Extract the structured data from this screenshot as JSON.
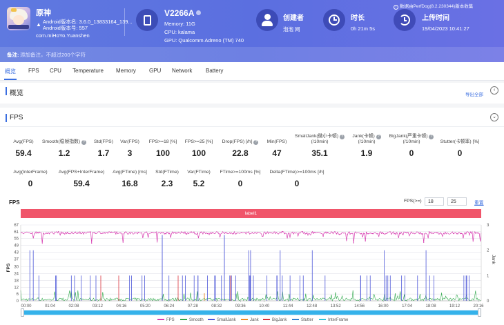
{
  "header": {
    "app_name": "原神",
    "android_version_name": "Android版本名: 3.6.0_13833164_139...",
    "android_version_code": "Android版本号: 557",
    "package": "com.miHoYo.Yuanshen",
    "device_name": "V2266A",
    "memory": "Memory: 11G",
    "cpu": "CPU: kalama",
    "gpu": "GPU: Qualcomm Adreno (TM) 740",
    "creator_title": "创建者",
    "creator_value": "泡泡 网",
    "duration_title": "时长",
    "duration_value": "0h 21m 5s",
    "upload_title": "上传时间",
    "upload_value": "19/04/2023 10:41:27",
    "source_note": "数据由PerfDog(8.2.230344)版本收集",
    "remark_label": "备注:",
    "remark_placeholder": "添加备注，不超过200个字符"
  },
  "tabs": [
    "概览",
    "FPS",
    "CPU",
    "Temperature",
    "Memory",
    "GPU",
    "Network",
    "Battery"
  ],
  "overview": {
    "title": "概览",
    "export_label": "导出全部"
  },
  "fps_panel": {
    "title": "FPS",
    "metrics_row1": [
      {
        "label": "Avg(FPS)",
        "value": "59.4",
        "help": false
      },
      {
        "label": "Smooth(稳帧指数)",
        "value": "1.2",
        "help": true
      },
      {
        "label": "Std(FPS)",
        "value": "1.7",
        "help": false
      },
      {
        "label": "Var(FPS)",
        "value": "3",
        "help": false
      },
      {
        "label": "FPS>=18 [%]",
        "value": "100",
        "help": false
      },
      {
        "label": "FPS>=25 [%]",
        "value": "100",
        "help": false
      },
      {
        "label": "Drop(FPS) [/h]",
        "value": "22.8",
        "help": true
      },
      {
        "label": "Min(FPS)",
        "value": "47",
        "help": false
      },
      {
        "label": "SmallJank(微小卡顿)|(/10min)",
        "value": "35.1",
        "help": true
      },
      {
        "label": "Jank(卡顿)|(/10min)",
        "value": "1.9",
        "help": true
      },
      {
        "label": "BigJank(严重卡顿)|(/10min)",
        "value": "0",
        "help": true
      },
      {
        "label": "Stutter(卡顿率) [%]",
        "value": "0",
        "help": false
      }
    ],
    "metrics_row2": [
      {
        "label": "Avg(InterFrame)",
        "value": "0",
        "help": false
      },
      {
        "label": "Avg(FPS+InterFrame)",
        "value": "59.4",
        "help": false
      },
      {
        "label": "Avg(FTime) [ms]",
        "value": "16.8",
        "help": false
      },
      {
        "label": "Std(FTime)",
        "value": "2.3",
        "help": false
      },
      {
        "label": "Var(FTime)",
        "value": "5.2",
        "help": false
      },
      {
        "label": "FTime>=100ms [%]",
        "value": "0",
        "help": false
      },
      {
        "label": "Delta(FTime)>=100ms [/h]",
        "value": "0",
        "help": false
      }
    ],
    "chart_label": "FPS",
    "filter_label": "FPS(>=)",
    "filter_min": "18",
    "filter_max": "25",
    "reset_label": "重置",
    "label_bar": "label1"
  },
  "colors": {
    "fps": "#d63bb0",
    "smooth": "#2ea84a",
    "smalljank": "#4c56d8",
    "jank": "#f08a24",
    "bigjank": "#d8313b",
    "stutter": "#2f7fd0",
    "interframe": "#30c4d8"
  },
  "chart_data": {
    "type": "line",
    "x_ticks": [
      "00:00",
      "01:04",
      "02:08",
      "03:12",
      "04:16",
      "05:20",
      "06:24",
      "07:28",
      "08:32",
      "09:36",
      "10:40",
      "11:44",
      "12:48",
      "13:52",
      "14:56",
      "16:00",
      "17:04",
      "18:08",
      "19:12",
      "20:16"
    ],
    "y_ticks": [
      0,
      6,
      12,
      18,
      24,
      30,
      37,
      43,
      49,
      55,
      61,
      67
    ],
    "y_range": [
      0,
      67
    ],
    "y_label": "FPS",
    "y2_ticks": [
      0,
      1,
      2,
      3
    ],
    "y2_range": [
      0,
      3
    ],
    "y2_label": "Jank",
    "x_range_seconds": [
      0,
      1265
    ],
    "series": [
      {
        "name": "FPS",
        "baseline": 60,
        "min": 47
      },
      {
        "name": "Smooth"
      },
      {
        "name": "SmallJank"
      },
      {
        "name": "Jank"
      },
      {
        "name": "BigJank"
      },
      {
        "name": "Stutter"
      },
      {
        "name": "InterFrame"
      }
    ]
  }
}
